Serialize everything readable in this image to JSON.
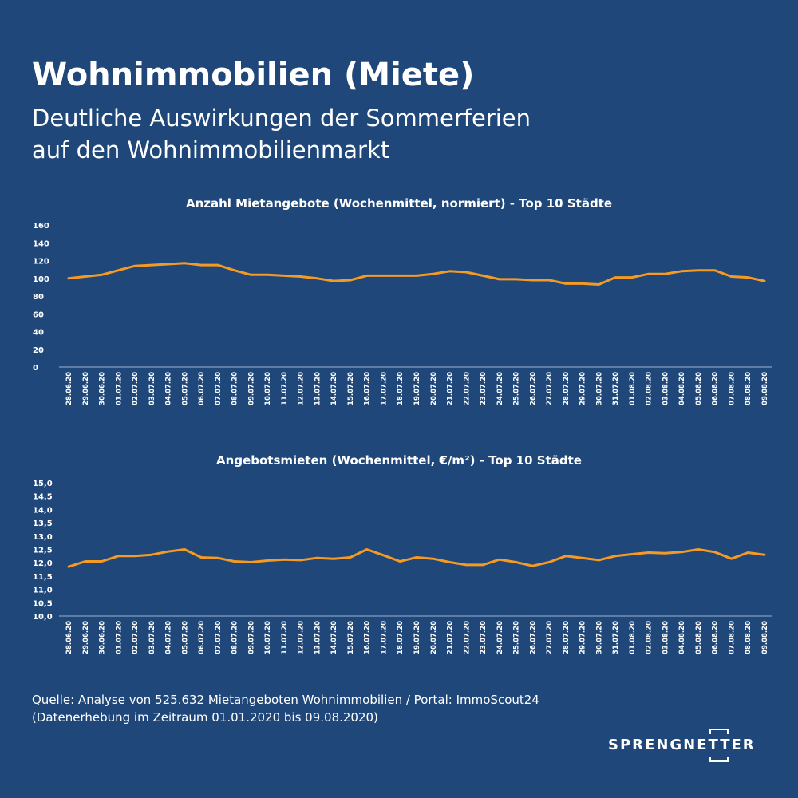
{
  "header": {
    "title": "Wohnimmobilien (Miete)",
    "subtitle_line1": "Deutliche Auswirkungen der Sommerferien",
    "subtitle_line2": "auf den Wohnimmobilienmarkt"
  },
  "colors": {
    "background": "#1f477a",
    "line": "#f59a23",
    "text": "#ffffff"
  },
  "chart_data": [
    {
      "type": "line",
      "title": "Anzahl Mietangebote (Wochenmittel, normiert) - Top 10 Städte",
      "xlabel": "",
      "ylabel": "",
      "ylim": [
        0,
        160
      ],
      "yticks": [
        "0",
        "20",
        "40",
        "60",
        "80",
        "100",
        "120",
        "140",
        "160"
      ],
      "grid": false,
      "categories": [
        "28.06.20",
        "29.06.20",
        "30.06.20",
        "01.07.20",
        "02.07.20",
        "03.07.20",
        "04.07.20",
        "05.07.20",
        "06.07.20",
        "07.07.20",
        "08.07.20",
        "09.07.20",
        "10.07.20",
        "11.07.20",
        "12.07.20",
        "13.07.20",
        "14.07.20",
        "15.07.20",
        "16.07.20",
        "17.07.20",
        "18.07.20",
        "19.07.20",
        "20.07.20",
        "21.07.20",
        "22.07.20",
        "23.07.20",
        "24.07.20",
        "25.07.20",
        "26.07.20",
        "27.07.20",
        "28.07.20",
        "29.07.20",
        "30.07.20",
        "31.07.20",
        "01.08.20",
        "02.08.20",
        "03.08.20",
        "04.08.20",
        "05.08.20",
        "06.08.20",
        "07.08.20",
        "08.08.20",
        "09.08.20"
      ],
      "series": [
        {
          "name": "",
          "values": [
            100,
            102,
            104,
            109,
            114,
            115,
            116,
            117,
            115,
            115,
            109,
            104,
            104,
            103,
            102,
            100,
            97,
            98,
            103,
            103,
            103,
            103,
            105,
            108,
            107,
            103,
            99,
            99,
            98,
            98,
            94,
            94,
            93,
            101,
            101,
            105,
            105,
            108,
            109,
            109,
            102,
            101,
            97
          ]
        }
      ]
    },
    {
      "type": "line",
      "title": "Angebotsmieten (Wochenmittel, €/m²) - Top 10 Städte",
      "xlabel": "",
      "ylabel": "",
      "ylim": [
        10.0,
        15.0
      ],
      "yticks": [
        "10,0",
        "10,5",
        "11,0",
        "11,5",
        "12,0",
        "12,5",
        "13,0",
        "13,5",
        "14,0",
        "14,5",
        "15,0"
      ],
      "grid": false,
      "categories": [
        "28.06.20",
        "29.06.20",
        "30.06.20",
        "01.07.20",
        "02.07.20",
        "03.07.20",
        "04.07.20",
        "05.07.20",
        "06.07.20",
        "07.07.20",
        "08.07.20",
        "09.07.20",
        "10.07.20",
        "11.07.20",
        "12.07.20",
        "13.07.20",
        "14.07.20",
        "15.07.20",
        "16.07.20",
        "17.07.20",
        "18.07.20",
        "19.07.20",
        "20.07.20",
        "21.07.20",
        "22.07.20",
        "23.07.20",
        "24.07.20",
        "25.07.20",
        "26.07.20",
        "27.07.20",
        "28.07.20",
        "29.07.20",
        "30.07.20",
        "31.07.20",
        "01.08.20",
        "02.08.20",
        "03.08.20",
        "04.08.20",
        "05.08.20",
        "06.08.20",
        "07.08.20",
        "08.08.20",
        "09.08.20"
      ],
      "series": [
        {
          "name": "",
          "values": [
            11.85,
            12.05,
            12.05,
            12.25,
            12.25,
            12.3,
            12.42,
            12.5,
            12.2,
            12.18,
            12.05,
            12.02,
            12.08,
            12.12,
            12.1,
            12.18,
            12.15,
            12.2,
            12.5,
            12.28,
            12.05,
            12.2,
            12.15,
            12.02,
            11.92,
            11.92,
            12.12,
            12.02,
            11.88,
            12.02,
            12.25,
            12.18,
            12.1,
            12.25,
            12.32,
            12.38,
            12.36,
            12.4,
            12.5,
            12.4,
            12.15,
            12.38,
            12.3
          ]
        }
      ]
    }
  ],
  "footer": {
    "source_line1": "Quelle: Analyse von 525.632 Mietangeboten Wohnimmobilien / Portal: ImmoScout24",
    "source_line2": "(Datenerhebung im Zeitraum 01.01.2020 bis  09.08.2020)"
  },
  "logo": {
    "text": "SPRENGNETTER"
  }
}
